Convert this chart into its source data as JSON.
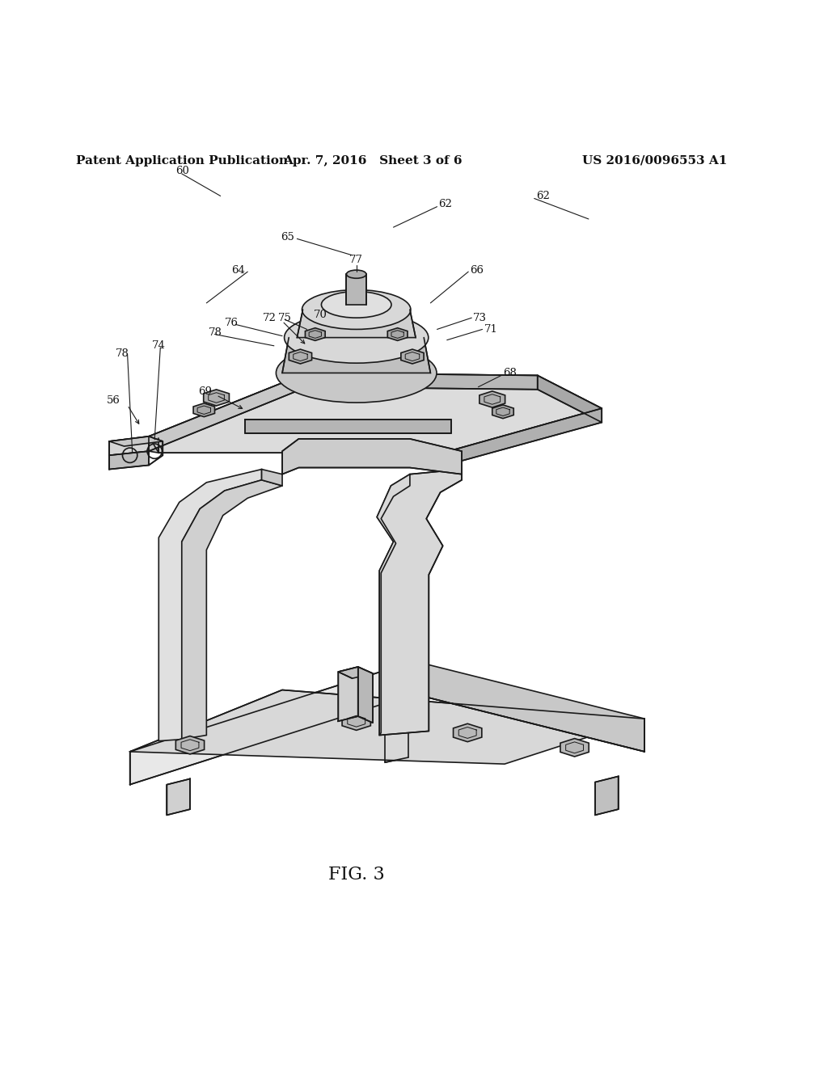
{
  "background_color": "#ffffff",
  "header_left": "Patent Application Publication",
  "header_center": "Apr. 7, 2016   Sheet 3 of 6",
  "header_right": "US 2016/0096553 A1",
  "figure_label": "FIG. 3",
  "header_font_size": 11,
  "fig_label_font_size": 16,
  "line_color": "#1a1a1a",
  "line_width": 1.2
}
